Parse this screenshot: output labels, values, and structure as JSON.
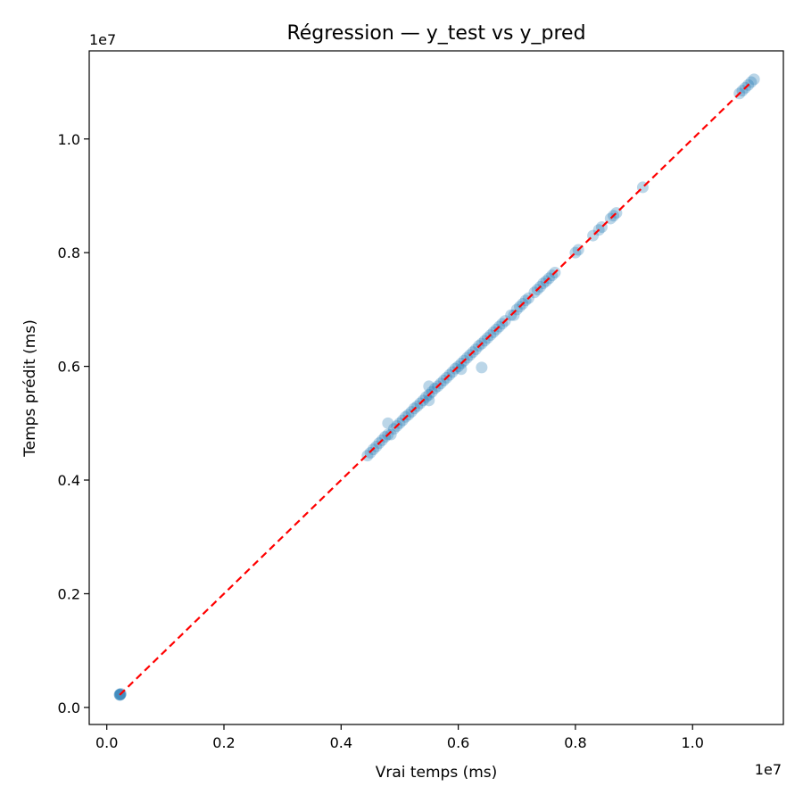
{
  "chart_data": {
    "type": "scatter",
    "title": "Régression — y_test vs y_pred",
    "xlabel": "Vrai temps (ms)",
    "ylabel": "Temps prédit (ms)",
    "x_offset_label": "1e7",
    "y_offset_label": "1e7",
    "xlim": [
      -0.03,
      1.155
    ],
    "ylim": [
      -0.03,
      1.155
    ],
    "x_ticks": [
      0.0,
      0.2,
      0.4,
      0.6,
      0.8,
      1.0
    ],
    "x_tick_labels": [
      "0.0",
      "0.2",
      "0.4",
      "0.6",
      "0.8",
      "1.0"
    ],
    "y_ticks": [
      0.0,
      0.2,
      0.4,
      0.6,
      0.8,
      1.0
    ],
    "y_tick_labels": [
      "0.0",
      "0.2",
      "0.4",
      "0.6",
      "0.8",
      "1.0"
    ],
    "grid": false,
    "point_color": "#1f77b4",
    "point_opacity": 0.3,
    "reference_line": {
      "from": [
        0.022,
        0.022
      ],
      "to": [
        1.1,
        1.1
      ],
      "color": "#ff0000",
      "style": "dashed"
    },
    "x": [
      0.022,
      0.023,
      0.024,
      0.022,
      0.023,
      0.445,
      0.45,
      0.455,
      0.46,
      0.465,
      0.47,
      0.475,
      0.48,
      0.49,
      0.495,
      0.5,
      0.505,
      0.51,
      0.515,
      0.52,
      0.525,
      0.53,
      0.535,
      0.54,
      0.545,
      0.55,
      0.555,
      0.56,
      0.565,
      0.57,
      0.575,
      0.58,
      0.585,
      0.59,
      0.595,
      0.6,
      0.605,
      0.61,
      0.615,
      0.62,
      0.625,
      0.63,
      0.635,
      0.64,
      0.645,
      0.65,
      0.655,
      0.66,
      0.665,
      0.67,
      0.675,
      0.68,
      0.69,
      0.7,
      0.705,
      0.71,
      0.715,
      0.72,
      0.73,
      0.735,
      0.74,
      0.745,
      0.75,
      0.755,
      0.76,
      0.765,
      0.8,
      0.805,
      0.83,
      0.84,
      0.845,
      0.86,
      0.865,
      0.87,
      0.915,
      1.08,
      1.085,
      1.09,
      1.095,
      1.1,
      1.105,
      0.48,
      0.55,
      0.55,
      0.64,
      0.605,
      0.695,
      0.485
    ],
    "y": [
      0.022,
      0.023,
      0.024,
      0.023,
      0.022,
      0.443,
      0.448,
      0.454,
      0.459,
      0.465,
      0.47,
      0.476,
      0.48,
      0.49,
      0.495,
      0.5,
      0.505,
      0.511,
      0.515,
      0.52,
      0.526,
      0.53,
      0.535,
      0.54,
      0.546,
      0.55,
      0.555,
      0.561,
      0.565,
      0.57,
      0.575,
      0.58,
      0.585,
      0.59,
      0.596,
      0.6,
      0.605,
      0.61,
      0.615,
      0.62,
      0.625,
      0.63,
      0.636,
      0.64,
      0.645,
      0.65,
      0.655,
      0.66,
      0.665,
      0.67,
      0.675,
      0.68,
      0.69,
      0.7,
      0.705,
      0.71,
      0.716,
      0.72,
      0.73,
      0.735,
      0.74,
      0.746,
      0.75,
      0.755,
      0.76,
      0.765,
      0.8,
      0.805,
      0.83,
      0.84,
      0.845,
      0.86,
      0.865,
      0.87,
      0.915,
      1.08,
      1.085,
      1.09,
      1.095,
      1.1,
      1.105,
      0.5,
      0.54,
      0.565,
      0.598,
      0.595,
      0.69,
      0.48
    ]
  }
}
